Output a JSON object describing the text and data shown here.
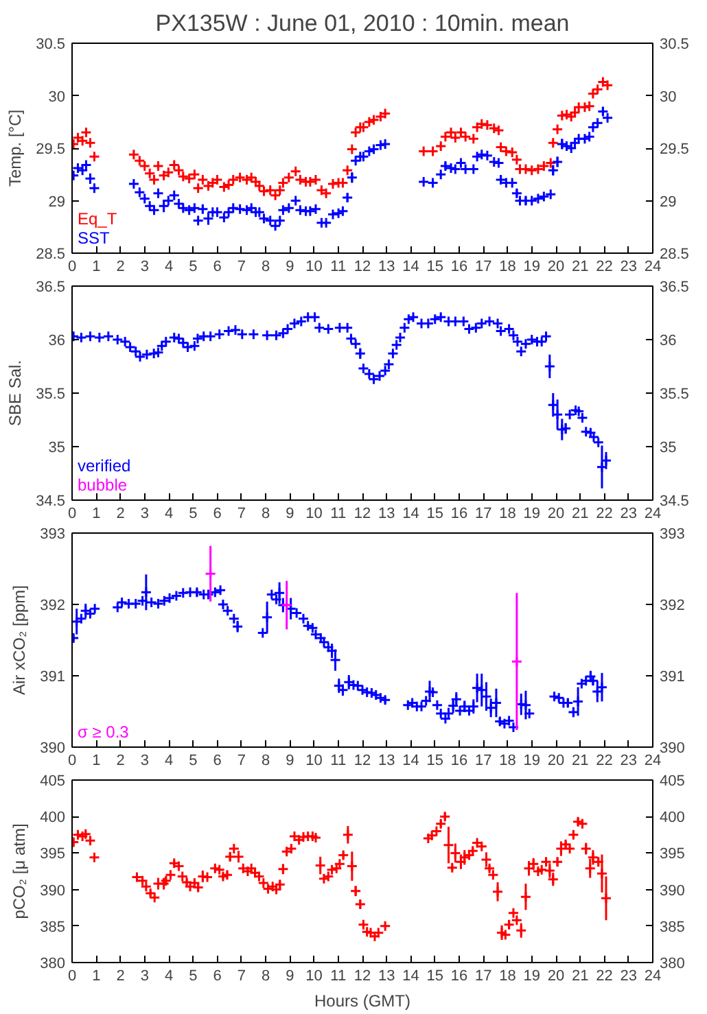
{
  "chart_data": [
    {
      "type": "scatter",
      "title": "PX135W : June 01, 2010 : 10min. mean",
      "ylabel": "Temp. [°C]",
      "xlim": [
        0,
        24
      ],
      "xticks": [
        0,
        1,
        2,
        3,
        4,
        5,
        6,
        7,
        8,
        9,
        10,
        11,
        12,
        13,
        14,
        15,
        16,
        17,
        18,
        19,
        20,
        21,
        22,
        23,
        24
      ],
      "ylim": [
        28.5,
        30.5
      ],
      "yticks": [
        28.5,
        29,
        29.5,
        30,
        30.5
      ],
      "y2lim": [
        28.5,
        30.5
      ],
      "y2ticks": [
        28.5,
        29,
        29.5,
        30,
        30.5
      ],
      "marker": "cross",
      "legend": "bottom left",
      "series": [
        {
          "name": "Eq_T",
          "color": "#ff0000",
          "x": [
            0.06,
            0.24,
            0.43,
            0.58,
            0.75,
            0.92,
            2.55,
            2.79,
            3.0,
            3.21,
            3.39,
            3.56,
            3.79,
            3.98,
            4.22,
            4.41,
            4.59,
            4.84,
            5.06,
            5.21,
            5.4,
            5.63,
            5.81,
            6.0,
            6.28,
            6.47,
            6.66,
            6.94,
            7.22,
            7.41,
            7.59,
            7.74,
            7.93,
            8.19,
            8.4,
            8.59,
            8.72,
            8.96,
            9.24,
            9.43,
            9.66,
            9.84,
            10.07,
            10.31,
            10.5,
            10.78,
            11.01,
            11.19,
            11.38,
            11.57,
            11.72,
            11.91,
            12.04,
            12.28,
            12.47,
            12.75,
            12.94,
            14.53,
            14.91,
            15.24,
            15.43,
            15.66,
            15.84,
            16.07,
            16.26,
            16.59,
            16.74,
            16.93,
            17.16,
            17.44,
            17.63,
            17.72,
            17.94,
            18.19,
            18.38,
            18.51,
            18.75,
            19.0,
            19.26,
            19.5,
            19.78,
            19.88,
            20.06,
            20.25,
            20.44,
            20.63,
            20.78,
            20.94,
            21.19,
            21.38,
            21.53,
            21.72,
            21.94,
            22.13
          ],
          "values": [
            29.54,
            29.6,
            29.57,
            29.65,
            29.55,
            29.42,
            29.44,
            29.38,
            29.33,
            29.26,
            29.2,
            29.33,
            29.24,
            29.27,
            29.34,
            29.29,
            29.23,
            29.21,
            29.25,
            29.12,
            29.2,
            29.14,
            29.17,
            29.2,
            29.13,
            29.15,
            29.2,
            29.22,
            29.2,
            29.22,
            29.18,
            29.14,
            29.09,
            29.1,
            29.05,
            29.1,
            29.17,
            29.22,
            29.28,
            29.2,
            29.18,
            29.18,
            29.2,
            29.1,
            29.07,
            29.16,
            29.17,
            29.17,
            29.29,
            29.49,
            29.65,
            29.7,
            29.7,
            29.75,
            29.77,
            29.8,
            29.83,
            29.47,
            29.47,
            29.52,
            29.61,
            29.65,
            29.6,
            29.65,
            29.61,
            29.59,
            29.7,
            29.73,
            29.72,
            29.69,
            29.67,
            29.51,
            29.47,
            29.46,
            29.39,
            29.3,
            29.3,
            29.29,
            29.3,
            29.33,
            29.36,
            29.55,
            29.68,
            29.81,
            29.82,
            29.8,
            29.84,
            29.89,
            29.89,
            29.9,
            30.02,
            30.06,
            30.13,
            30.1
          ]
        },
        {
          "name": "SST",
          "color": "#0000ff",
          "x": [
            0.06,
            0.24,
            0.43,
            0.58,
            0.75,
            0.92,
            2.55,
            2.79,
            3.0,
            3.21,
            3.39,
            3.56,
            3.79,
            3.98,
            4.22,
            4.41,
            4.59,
            4.84,
            5.06,
            5.21,
            5.4,
            5.63,
            5.81,
            6.0,
            6.28,
            6.47,
            6.66,
            6.94,
            7.22,
            7.41,
            7.59,
            7.74,
            7.93,
            8.19,
            8.4,
            8.59,
            8.72,
            8.96,
            9.24,
            9.43,
            9.66,
            9.84,
            10.07,
            10.31,
            10.5,
            10.78,
            11.01,
            11.19,
            11.38,
            11.57,
            11.72,
            11.91,
            12.04,
            12.28,
            12.47,
            12.75,
            12.94,
            14.53,
            14.91,
            15.24,
            15.43,
            15.66,
            15.84,
            16.07,
            16.26,
            16.59,
            16.74,
            16.93,
            17.16,
            17.44,
            17.63,
            17.72,
            17.94,
            18.19,
            18.38,
            18.51,
            18.75,
            19.0,
            19.26,
            19.5,
            19.78,
            19.88,
            20.06,
            20.25,
            20.44,
            20.63,
            20.78,
            20.94,
            21.19,
            21.38,
            21.53,
            21.72,
            21.94,
            22.13
          ],
          "values": [
            29.24,
            29.31,
            29.29,
            29.34,
            29.21,
            29.12,
            29.16,
            29.08,
            29.02,
            28.95,
            28.91,
            29.07,
            28.95,
            29.0,
            29.05,
            28.97,
            28.93,
            28.91,
            28.93,
            28.81,
            28.92,
            28.83,
            28.89,
            28.89,
            28.84,
            28.89,
            28.93,
            28.92,
            28.91,
            28.93,
            28.89,
            28.89,
            28.83,
            28.81,
            28.76,
            28.81,
            28.91,
            28.93,
            29.0,
            28.91,
            28.9,
            28.9,
            28.92,
            28.79,
            28.79,
            28.87,
            28.88,
            28.9,
            29.03,
            29.22,
            29.38,
            29.42,
            29.42,
            29.47,
            29.49,
            29.53,
            29.54,
            29.18,
            29.17,
            29.25,
            29.33,
            29.31,
            29.3,
            29.36,
            29.3,
            29.3,
            29.42,
            29.44,
            29.43,
            29.37,
            29.36,
            29.2,
            29.17,
            29.17,
            29.07,
            29.0,
            29.0,
            29.0,
            29.02,
            29.04,
            29.06,
            29.29,
            29.37,
            29.54,
            29.52,
            29.5,
            29.55,
            29.59,
            29.59,
            29.61,
            29.7,
            29.74,
            29.85,
            29.79
          ],
          "errors": [
            null,
            null,
            null,
            null,
            0.05,
            null,
            null,
            null,
            null,
            null,
            null,
            0.04,
            0.06,
            null,
            null,
            null,
            null,
            null,
            null,
            null,
            0.04,
            0.06,
            null,
            null,
            null,
            null,
            null,
            null,
            null,
            null,
            null,
            null,
            null,
            null,
            null,
            null,
            null,
            null,
            null,
            null,
            null,
            null,
            null,
            null,
            null,
            null,
            null,
            null,
            0.04,
            0.05,
            null,
            null,
            null,
            null,
            null,
            null,
            null,
            null,
            null,
            null,
            0.04,
            null,
            null,
            null,
            null,
            null,
            null,
            null,
            null,
            null,
            null,
            0.04,
            null,
            null,
            0.04,
            null,
            0.04,
            null,
            null,
            null,
            null,
            0.05,
            0.05,
            0.05,
            null,
            null,
            null,
            null,
            null,
            null,
            null,
            null,
            0.04,
            null
          ]
        }
      ]
    },
    {
      "type": "scatter",
      "ylabel": "SBE Sal.",
      "xlim": [
        0,
        24
      ],
      "xticks": [
        0,
        1,
        2,
        3,
        4,
        5,
        6,
        7,
        8,
        9,
        10,
        11,
        12,
        13,
        14,
        15,
        16,
        17,
        18,
        19,
        20,
        21,
        22,
        23,
        24
      ],
      "ylim": [
        34.5,
        36.5
      ],
      "yticks": [
        34.5,
        35,
        35.5,
        36,
        36.5
      ],
      "y2lim": [
        34.5,
        36.5
      ],
      "y2ticks": [
        34.5,
        35,
        35.5,
        36,
        36.5
      ],
      "marker": "cross",
      "legend": "bottom left",
      "series": [
        {
          "name": "verified",
          "color": "#0000ff",
          "x": [
            0.06,
            0.38,
            0.75,
            1.13,
            1.5,
            1.88,
            2.19,
            2.4,
            2.63,
            2.81,
            3.09,
            3.38,
            3.56,
            3.71,
            3.88,
            4.22,
            4.41,
            4.59,
            4.78,
            5.06,
            5.19,
            5.44,
            5.72,
            6.09,
            6.47,
            6.75,
            7.03,
            7.5,
            8.06,
            8.44,
            8.72,
            8.91,
            9.19,
            9.47,
            9.75,
            10.03,
            10.22,
            10.59,
            11.06,
            11.38,
            11.53,
            11.72,
            11.91,
            12.04,
            12.28,
            12.47,
            12.71,
            12.94,
            13.09,
            13.26,
            13.41,
            13.56,
            13.74,
            13.91,
            14.1,
            14.44,
            14.72,
            15.0,
            15.24,
            15.56,
            15.84,
            16.18,
            16.41,
            16.69,
            16.93,
            17.25,
            17.59,
            17.72,
            18.06,
            18.24,
            18.41,
            18.56,
            18.75,
            19.0,
            19.22,
            19.41,
            19.59,
            19.74,
            19.88,
            20.06,
            20.25,
            20.4,
            20.57,
            20.81,
            20.94,
            21.09,
            21.24,
            21.43,
            21.56,
            21.75,
            21.9,
            22.07
          ],
          "values": [
            36.03,
            36.02,
            36.03,
            36.02,
            36.03,
            36.0,
            35.98,
            35.93,
            35.89,
            35.84,
            35.86,
            35.87,
            35.88,
            35.94,
            35.98,
            36.02,
            36.01,
            35.97,
            35.93,
            35.94,
            36.01,
            36.03,
            36.03,
            36.05,
            36.08,
            36.09,
            36.05,
            36.05,
            36.04,
            36.04,
            36.06,
            36.1,
            36.15,
            36.17,
            36.21,
            36.21,
            36.11,
            36.1,
            36.11,
            36.11,
            36.01,
            35.96,
            35.87,
            35.73,
            35.68,
            35.63,
            35.66,
            35.71,
            35.77,
            35.87,
            35.95,
            36.02,
            36.11,
            36.19,
            36.21,
            36.15,
            36.15,
            36.19,
            36.21,
            36.17,
            36.17,
            36.17,
            36.1,
            36.11,
            36.15,
            36.17,
            36.15,
            36.08,
            36.1,
            36.04,
            35.98,
            35.89,
            35.96,
            36.0,
            35.98,
            35.98,
            36.03,
            35.75,
            35.39,
            35.3,
            35.16,
            35.17,
            35.3,
            35.34,
            35.33,
            35.27,
            35.14,
            35.13,
            35.09,
            35.04,
            34.81,
            34.87
          ],
          "errors": [
            null,
            null,
            null,
            null,
            null,
            null,
            null,
            null,
            null,
            null,
            null,
            null,
            null,
            null,
            null,
            null,
            null,
            null,
            null,
            null,
            null,
            null,
            null,
            null,
            null,
            null,
            null,
            null,
            null,
            null,
            null,
            null,
            null,
            null,
            null,
            null,
            null,
            null,
            null,
            null,
            null,
            null,
            0.05,
            null,
            null,
            null,
            null,
            null,
            null,
            null,
            null,
            null,
            null,
            null,
            null,
            null,
            null,
            null,
            null,
            null,
            null,
            null,
            null,
            null,
            null,
            null,
            null,
            null,
            null,
            null,
            null,
            null,
            null,
            null,
            null,
            null,
            null,
            0.11,
            0.11,
            0.14,
            0.1,
            0.05,
            null,
            null,
            null,
            null,
            null,
            0.04,
            null,
            null,
            0.2,
            0.08
          ]
        },
        {
          "name": "bubble",
          "color": "#ff00ff"
        }
      ]
    },
    {
      "type": "scatter",
      "ylabel": "Air xCO₂ [ppm]",
      "xlim": [
        0,
        24
      ],
      "xticks": [
        0,
        1,
        2,
        3,
        4,
        5,
        6,
        7,
        8,
        9,
        10,
        11,
        12,
        13,
        14,
        15,
        16,
        17,
        18,
        19,
        20,
        21,
        22,
        23,
        24
      ],
      "ylim": [
        390,
        393
      ],
      "yticks": [
        390,
        391,
        392,
        393
      ],
      "y2lim": [
        390,
        393
      ],
      "y2ticks": [
        390,
        391,
        392,
        393
      ],
      "marker": "cross",
      "legend": "bottom left",
      "series": [
        {
          "color": "#0000ff",
          "x": [
            0.06,
            0.19,
            0.38,
            0.56,
            0.75,
            0.94,
            1.88,
            2.06,
            2.34,
            2.63,
            2.91,
            3.06,
            3.28,
            3.56,
            3.81,
            4.03,
            4.31,
            4.59,
            4.88,
            5.16,
            5.44,
            5.63,
            5.91,
            6.13,
            6.24,
            6.43,
            6.69,
            6.84,
            7.88,
            8.06,
            8.25,
            8.44,
            8.57,
            8.72,
            9.04,
            9.28,
            9.56,
            9.75,
            9.94,
            10.07,
            10.28,
            10.41,
            10.59,
            10.74,
            10.88,
            11.03,
            11.19,
            11.44,
            11.63,
            11.81,
            12.0,
            12.19,
            12.38,
            12.56,
            12.75,
            12.94,
            13.88,
            14.06,
            14.25,
            14.44,
            14.63,
            14.78,
            14.91,
            15.09,
            15.24,
            15.43,
            15.56,
            15.75,
            15.88,
            16.03,
            16.22,
            16.41,
            16.59,
            16.74,
            16.93,
            17.12,
            17.31,
            17.53,
            17.68,
            17.87,
            18.06,
            18.24,
            18.56,
            18.75,
            18.9,
            19.93,
            20.12,
            20.31,
            20.49,
            20.72,
            20.91,
            21.06,
            21.24,
            21.43,
            21.53,
            21.71,
            21.9
          ],
          "values": [
            391.53,
            391.76,
            391.8,
            391.91,
            391.87,
            391.94,
            391.96,
            392.03,
            392.01,
            392.01,
            392.05,
            392.17,
            392.03,
            392.01,
            392.05,
            392.09,
            392.12,
            392.16,
            392.17,
            392.17,
            392.14,
            392.14,
            392.17,
            392.2,
            392.0,
            391.91,
            391.8,
            391.69,
            391.6,
            391.82,
            392.14,
            392.07,
            392.16,
            391.99,
            391.94,
            391.88,
            391.8,
            391.7,
            391.67,
            391.58,
            391.53,
            391.47,
            391.4,
            391.35,
            391.22,
            390.86,
            390.8,
            390.91,
            390.87,
            390.86,
            390.8,
            390.77,
            390.76,
            390.73,
            390.69,
            390.66,
            390.59,
            390.62,
            390.57,
            390.57,
            390.65,
            390.78,
            390.77,
            390.59,
            390.47,
            390.4,
            390.47,
            390.58,
            390.67,
            390.51,
            390.57,
            390.51,
            390.57,
            390.83,
            390.8,
            390.71,
            390.55,
            390.62,
            390.36,
            390.33,
            390.37,
            390.28,
            390.6,
            390.59,
            390.47,
            390.71,
            390.69,
            390.62,
            390.62,
            390.49,
            390.64,
            390.89,
            390.93,
            390.99,
            390.93,
            390.78,
            390.84
          ],
          "errors": [
            0.05,
            0.18,
            null,
            0.1,
            null,
            null,
            null,
            null,
            null,
            null,
            null,
            0.25,
            null,
            null,
            null,
            null,
            null,
            null,
            null,
            0.05,
            null,
            null,
            null,
            null,
            null,
            null,
            null,
            0.08,
            null,
            0.22,
            null,
            null,
            0.15,
            0.1,
            0.15,
            null,
            null,
            null,
            null,
            null,
            null,
            null,
            null,
            0.1,
            0.15,
            0.1,
            0.08,
            0.1,
            null,
            null,
            null,
            null,
            null,
            null,
            null,
            0.05,
            null,
            null,
            null,
            null,
            null,
            0.15,
            null,
            null,
            null,
            null,
            0.08,
            0.1,
            0.1,
            null,
            0.08,
            null,
            0.1,
            0.2,
            0.23,
            0.2,
            0.13,
            0.2,
            0.05,
            null,
            null,
            null,
            0.15,
            0.2,
            null,
            0.06,
            null,
            null,
            0.06,
            0.07,
            0.2,
            null,
            null,
            0.08,
            0.06,
            0.15,
            0.2
          ]
        },
        {
          "name": "σ ≥ 0.3",
          "color": "#ff00ff",
          "x": [
            5.72,
            8.87,
            18.38
          ],
          "values": [
            392.43,
            391.99,
            391.2
          ],
          "errors": [
            [
              392.04,
              392.82
            ],
            [
              391.65,
              392.33
            ],
            [
              390.24,
              392.16
            ]
          ]
        }
      ]
    },
    {
      "type": "scatter",
      "ylabel": "pCO₂ [μ atm]",
      "xlabel": "Hours (GMT)",
      "xlim": [
        0,
        24
      ],
      "xticks": [
        0,
        1,
        2,
        3,
        4,
        5,
        6,
        7,
        8,
        9,
        10,
        11,
        12,
        13,
        14,
        15,
        16,
        17,
        18,
        19,
        20,
        21,
        22,
        23,
        24
      ],
      "ylim": [
        380,
        405
      ],
      "yticks": [
        380,
        385,
        390,
        395,
        400,
        405
      ],
      "y2lim": [
        380,
        405
      ],
      "y2ticks": [
        380,
        385,
        390,
        395,
        400,
        405
      ],
      "marker": "cross",
      "series": [
        {
          "color": "#ff0000",
          "x": [
            0.06,
            0.24,
            0.43,
            0.56,
            0.75,
            0.92,
            2.68,
            2.91,
            3.06,
            3.24,
            3.41,
            3.56,
            3.79,
            3.88,
            4.07,
            4.22,
            4.41,
            4.56,
            4.74,
            4.88,
            5.06,
            5.21,
            5.4,
            5.59,
            5.91,
            6.09,
            6.24,
            6.41,
            6.53,
            6.69,
            6.88,
            7.07,
            7.26,
            7.41,
            7.56,
            7.73,
            7.91,
            8.1,
            8.29,
            8.44,
            8.59,
            8.72,
            8.87,
            9.06,
            9.19,
            9.38,
            9.56,
            9.75,
            9.94,
            10.07,
            10.26,
            10.41,
            10.59,
            10.74,
            10.93,
            11.06,
            11.21,
            11.4,
            11.57,
            11.72,
            11.91,
            12.04,
            12.19,
            12.34,
            12.51,
            12.66,
            12.94,
            14.72,
            14.87,
            15.06,
            15.24,
            15.41,
            15.56,
            15.71,
            15.84,
            16.07,
            16.22,
            16.41,
            16.56,
            16.74,
            16.93,
            17.12,
            17.25,
            17.4,
            17.59,
            17.76,
            17.91,
            18.06,
            18.24,
            18.38,
            18.56,
            18.75,
            18.88,
            19.07,
            19.26,
            19.41,
            19.59,
            19.74,
            19.88,
            20.06,
            20.21,
            20.4,
            20.57,
            20.72,
            20.91,
            21.09,
            21.24,
            21.41,
            21.53,
            21.75,
            21.9,
            22.07
          ],
          "values": [
            396.5,
            397.5,
            397.3,
            397.6,
            396.7,
            394.4,
            391.7,
            391.2,
            390.4,
            389.5,
            388.9,
            390.8,
            390.8,
            391.2,
            392.0,
            393.6,
            393.2,
            391.8,
            391.0,
            390.4,
            390.9,
            390.3,
            391.8,
            391.7,
            392.9,
            392.7,
            391.8,
            392.0,
            394.5,
            395.6,
            394.5,
            392.9,
            392.5,
            392.9,
            392.3,
            391.8,
            390.9,
            390.1,
            390.4,
            390.0,
            390.7,
            392.8,
            395.2,
            395.6,
            397.3,
            396.8,
            397.2,
            397.3,
            397.3,
            397.1,
            393.3,
            391.5,
            391.8,
            392.7,
            392.9,
            393.5,
            394.7,
            397.5,
            393.2,
            389.8,
            388.0,
            385.2,
            384.2,
            384.1,
            383.6,
            384.1,
            385.0,
            397.0,
            397.4,
            398.0,
            399.0,
            400.0,
            396.1,
            393.0,
            395.0,
            393.8,
            394.4,
            394.7,
            395.3,
            396.4,
            395.9,
            394.1,
            392.9,
            392.0,
            389.7,
            384.1,
            383.8,
            385.2,
            386.8,
            385.8,
            384.4,
            389.0,
            392.9,
            393.5,
            392.5,
            392.7,
            393.8,
            392.6,
            391.4,
            393.8,
            395.6,
            396.2,
            395.6,
            397.5,
            399.3,
            399.0,
            395.6,
            392.9,
            394.4,
            393.8,
            392.2,
            388.8
          ],
          "errors": [
            0.5,
            0.6,
            null,
            0.5,
            0.6,
            null,
            0.5,
            0.5,
            null,
            0.4,
            null,
            0.8,
            0.8,
            0.6,
            null,
            0.4,
            0.5,
            null,
            0.4,
            null,
            0.5,
            0.5,
            0.8,
            null,
            0.5,
            null,
            0.4,
            0.5,
            0.6,
            null,
            0.8,
            null,
            null,
            null,
            null,
            null,
            null,
            null,
            null,
            null,
            0.5,
            0.7,
            0.5,
            0.4,
            null,
            null,
            null,
            null,
            null,
            null,
            1.2,
            null,
            null,
            null,
            null,
            null,
            0.5,
            1.2,
            2.0,
            0.7,
            0.6,
            0.5,
            null,
            null,
            null,
            null,
            null,
            null,
            null,
            null,
            0.5,
            0.5,
            2.5,
            0.4,
            1.3,
            1.0,
            1.0,
            0.6,
            0.5,
            null,
            null,
            1.0,
            0.4,
            null,
            1.3,
            1.0,
            null,
            0.6,
            null,
            null,
            1.0,
            1.8,
            1.0,
            0.8,
            null,
            null,
            0.6,
            1.0,
            0.9,
            0.6,
            1.0,
            0.5,
            null,
            0.6,
            0.5,
            0.5,
            0.8,
            1.3,
            1.0,
            0.6,
            2.6,
            3.0
          ]
        }
      ]
    }
  ]
}
